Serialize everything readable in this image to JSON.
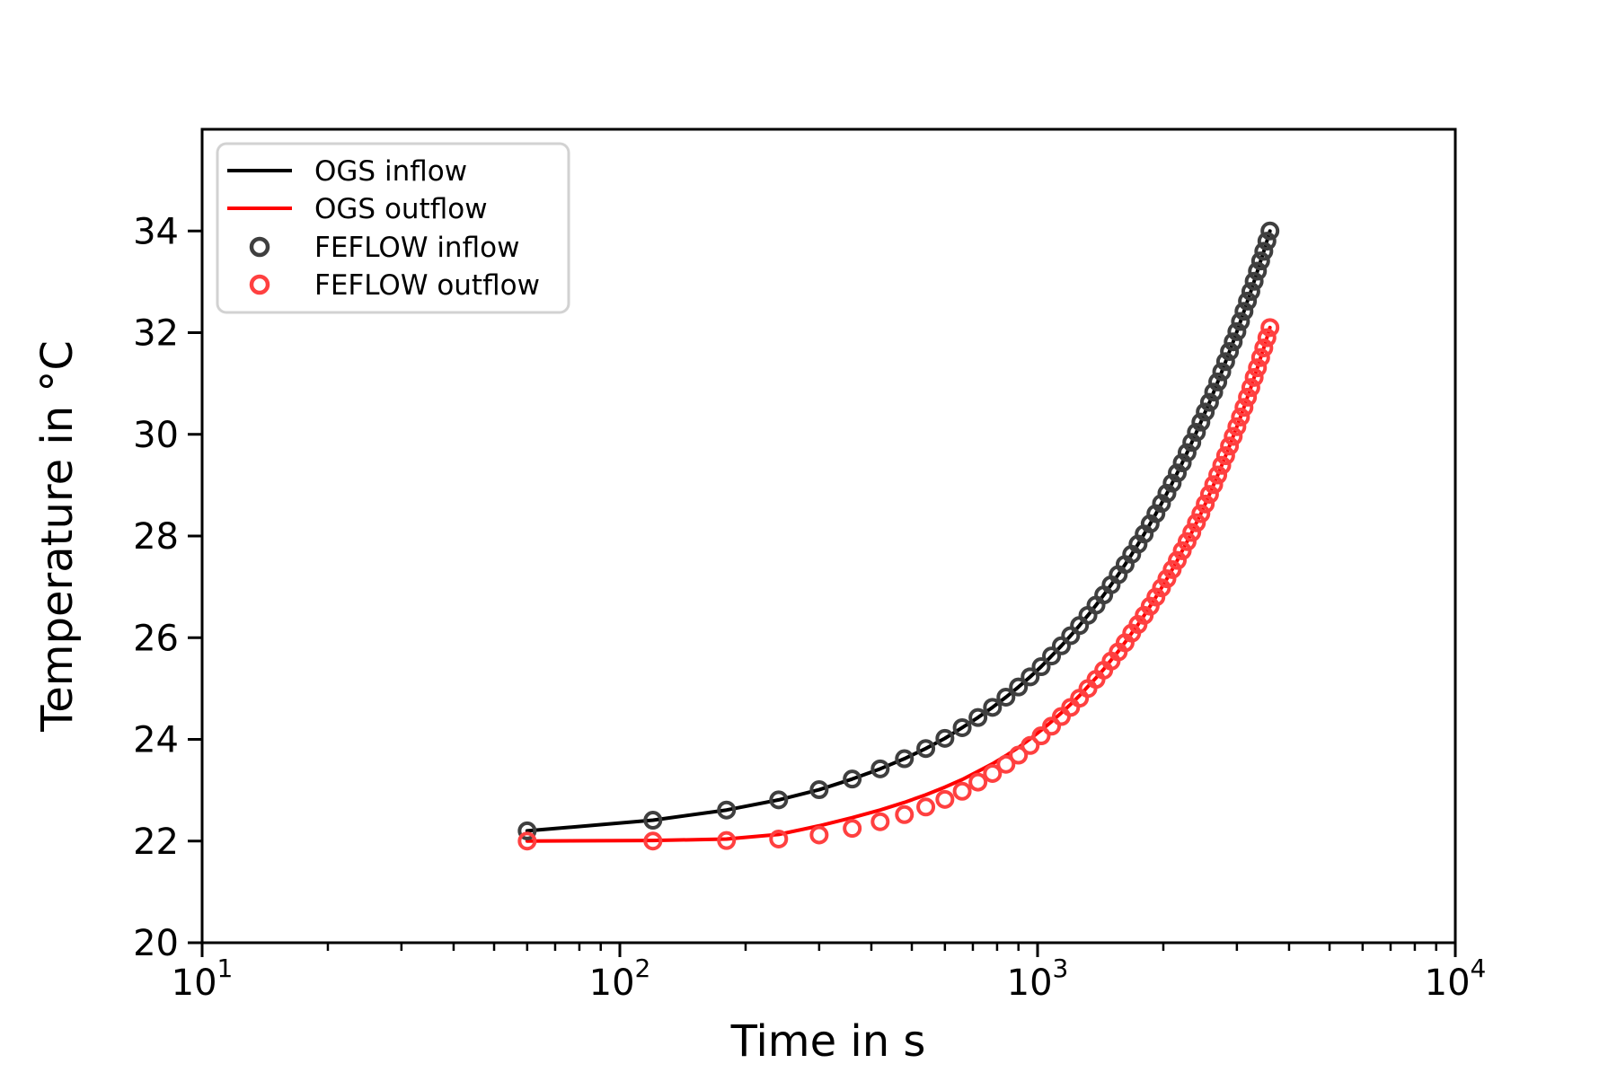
{
  "axes": {
    "xlabel": "Time in s",
    "ylabel": "Temperature in °C",
    "x_ticks": [
      {
        "base": "10",
        "exp": "1",
        "value": 10
      },
      {
        "base": "10",
        "exp": "2",
        "value": 100
      },
      {
        "base": "10",
        "exp": "3",
        "value": 1000
      },
      {
        "base": "10",
        "exp": "4",
        "value": 10000
      }
    ],
    "y_ticks": [
      20,
      22,
      24,
      26,
      28,
      30,
      32,
      34
    ]
  },
  "legend": {
    "items": [
      {
        "label": "OGS inflow",
        "type": "line",
        "color": "#000000"
      },
      {
        "label": "OGS outflow",
        "type": "line",
        "color": "#ff0000"
      },
      {
        "label": "FEFLOW inflow",
        "type": "marker",
        "color": "#3f3f3f"
      },
      {
        "label": "FEFLOW outflow",
        "type": "marker",
        "color": "#ff4040"
      }
    ]
  },
  "chart_data": {
    "type": "line",
    "xscale": "log",
    "xlim": [
      10,
      10000
    ],
    "ylim": [
      20,
      36
    ],
    "grid": false,
    "legend_position": "upper left",
    "title": "",
    "xlabel": "Time in s",
    "ylabel": "Temperature in °C",
    "x": [
      60,
      120,
      180,
      240,
      300,
      360,
      420,
      480,
      540,
      600,
      660,
      720,
      780,
      840,
      900,
      960,
      1020,
      1080,
      1140,
      1200,
      1260,
      1320,
      1380,
      1440,
      1500,
      1560,
      1620,
      1680,
      1740,
      1800,
      1860,
      1920,
      1980,
      2040,
      2100,
      2160,
      2220,
      2280,
      2340,
      2400,
      2460,
      2520,
      2580,
      2640,
      2700,
      2760,
      2820,
      2880,
      2940,
      3000,
      3060,
      3120,
      3180,
      3240,
      3300,
      3360,
      3420,
      3480,
      3540,
      3600
    ],
    "series": [
      {
        "name": "OGS inflow",
        "style": "line",
        "color": "#000000",
        "linewidth": 4,
        "values": [
          22.2,
          22.41,
          22.61,
          22.81,
          23.01,
          23.22,
          23.42,
          23.62,
          23.82,
          24.02,
          24.23,
          24.43,
          24.63,
          24.83,
          25.03,
          25.23,
          25.43,
          25.64,
          25.84,
          26.04,
          26.24,
          26.44,
          26.64,
          26.84,
          27.04,
          27.24,
          27.44,
          27.64,
          27.84,
          28.04,
          28.24,
          28.44,
          28.64,
          28.84,
          29.04,
          29.24,
          29.44,
          29.64,
          29.84,
          30.04,
          30.24,
          30.44,
          30.63,
          30.83,
          31.03,
          31.23,
          31.43,
          31.63,
          31.82,
          32.02,
          32.22,
          32.42,
          32.62,
          32.81,
          33.01,
          33.21,
          33.41,
          33.6,
          33.8,
          34.0
        ]
      },
      {
        "name": "OGS outflow",
        "style": "line",
        "color": "#ff0000",
        "linewidth": 4,
        "values": [
          22.0,
          22.01,
          22.04,
          22.13,
          22.3,
          22.46,
          22.61,
          22.76,
          22.91,
          23.06,
          23.21,
          23.37,
          23.52,
          23.68,
          23.84,
          24.01,
          24.18,
          24.35,
          24.52,
          24.69,
          24.86,
          25.04,
          25.21,
          25.38,
          25.56,
          25.73,
          25.91,
          26.09,
          26.26,
          26.44,
          26.62,
          26.8,
          26.98,
          27.16,
          27.34,
          27.52,
          27.71,
          27.89,
          28.07,
          28.26,
          28.44,
          28.63,
          28.82,
          29.01,
          29.2,
          29.39,
          29.58,
          29.77,
          29.96,
          30.15,
          30.34,
          30.53,
          30.73,
          30.92,
          31.12,
          31.31,
          31.51,
          31.7,
          31.9,
          32.1
        ]
      },
      {
        "name": "FEFLOW inflow",
        "style": "scatter",
        "color": "#3f3f3f",
        "marker": "open-circle",
        "values": [
          22.2,
          22.41,
          22.61,
          22.81,
          23.01,
          23.22,
          23.42,
          23.62,
          23.82,
          24.02,
          24.23,
          24.43,
          24.63,
          24.83,
          25.03,
          25.23,
          25.43,
          25.64,
          25.84,
          26.04,
          26.24,
          26.44,
          26.64,
          26.84,
          27.04,
          27.24,
          27.44,
          27.64,
          27.84,
          28.04,
          28.24,
          28.44,
          28.64,
          28.84,
          29.04,
          29.24,
          29.44,
          29.64,
          29.84,
          30.04,
          30.24,
          30.44,
          30.63,
          30.83,
          31.03,
          31.23,
          31.43,
          31.63,
          31.82,
          32.02,
          32.22,
          32.42,
          32.62,
          32.81,
          33.01,
          33.21,
          33.41,
          33.6,
          33.8,
          34.0
        ]
      },
      {
        "name": "FEFLOW outflow",
        "style": "scatter",
        "color": "#ff4040",
        "marker": "open-circle",
        "values": [
          22.0,
          22.0,
          22.01,
          22.04,
          22.12,
          22.25,
          22.38,
          22.52,
          22.67,
          22.82,
          22.98,
          23.16,
          23.33,
          23.51,
          23.69,
          23.88,
          24.07,
          24.26,
          24.45,
          24.63,
          24.81,
          25.0,
          25.18,
          25.36,
          25.54,
          25.72,
          25.9,
          26.09,
          26.26,
          26.44,
          26.62,
          26.8,
          26.98,
          27.16,
          27.34,
          27.52,
          27.71,
          27.89,
          28.07,
          28.26,
          28.44,
          28.63,
          28.82,
          29.01,
          29.2,
          29.39,
          29.58,
          29.77,
          29.96,
          30.15,
          30.34,
          30.53,
          30.73,
          30.92,
          31.12,
          31.31,
          31.51,
          31.7,
          31.9,
          32.1
        ]
      }
    ]
  }
}
